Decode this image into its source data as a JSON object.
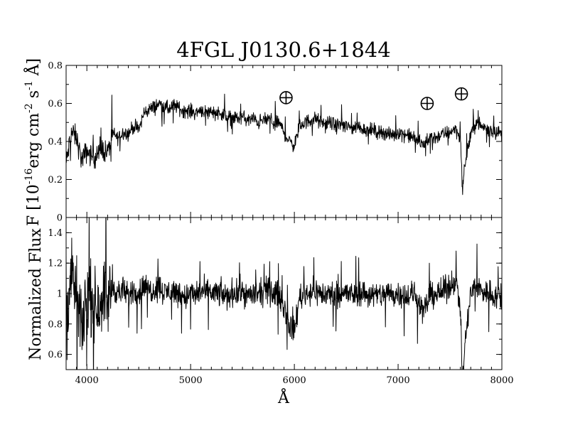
{
  "chart_data": {
    "type": "line",
    "title": "4FGL J0130.6+1844",
    "xlabel": "Å",
    "xlim": [
      3800,
      8000
    ],
    "x_ticks": [
      "4000",
      "5000",
      "6000",
      "7000",
      "8000"
    ],
    "panels": [
      {
        "id": "flux",
        "ylabel_parts": [
          "F [10",
          "-16",
          "erg cm",
          "-2",
          " s",
          "-1",
          " Å]"
        ],
        "ylim": [
          0,
          0.8
        ],
        "y_ticks": [
          "0",
          "0.2",
          "0.4",
          "0.6",
          "0.8"
        ],
        "series": [
          {
            "x": [
              3800,
              3850,
              3900,
              3950,
              4000,
              4050,
              4100,
              4150,
              4200,
              4250,
              4300,
              4350,
              4400,
              4450,
              4500,
              4550,
              4600,
              4650,
              4700,
              4750,
              4800,
              4850,
              4900,
              4950,
              5000,
              5050,
              5100,
              5150,
              5200,
              5250,
              5300,
              5350,
              5400,
              5450,
              5500,
              5550,
              5600,
              5650,
              5700,
              5750,
              5800,
              5850,
              5900,
              5950,
              6000,
              6050,
              6100,
              6150,
              6200,
              6250,
              6300,
              6350,
              6400,
              6450,
              6500,
              6550,
              6600,
              6650,
              6700,
              6750,
              6800,
              6850,
              6900,
              6950,
              7000,
              7050,
              7100,
              7150,
              7200,
              7250,
              7300,
              7350,
              7400,
              7450,
              7500,
              7550,
              7600,
              7620,
              7650,
              7700,
              7750,
              7800,
              7850,
              7900,
              7950,
              8000
            ],
            "y": [
              0.28,
              0.45,
              0.42,
              0.3,
              0.35,
              0.32,
              0.33,
              0.36,
              0.34,
              0.44,
              0.42,
              0.45,
              0.44,
              0.48,
              0.46,
              0.55,
              0.57,
              0.58,
              0.6,
              0.58,
              0.57,
              0.59,
              0.57,
              0.56,
              0.56,
              0.55,
              0.57,
              0.55,
              0.56,
              0.55,
              0.55,
              0.52,
              0.53,
              0.52,
              0.53,
              0.51,
              0.52,
              0.5,
              0.51,
              0.52,
              0.5,
              0.5,
              0.45,
              0.4,
              0.38,
              0.48,
              0.5,
              0.51,
              0.52,
              0.5,
              0.49,
              0.5,
              0.48,
              0.49,
              0.48,
              0.47,
              0.48,
              0.47,
              0.46,
              0.46,
              0.45,
              0.45,
              0.44,
              0.43,
              0.45,
              0.44,
              0.43,
              0.42,
              0.4,
              0.38,
              0.42,
              0.42,
              0.43,
              0.44,
              0.45,
              0.47,
              0.42,
              0.15,
              0.3,
              0.44,
              0.5,
              0.48,
              0.47,
              0.46,
              0.45,
              0.44
            ]
          }
        ],
        "annotations": [
          {
            "x": 5920,
            "y": 0.63,
            "symbol": "⊕"
          },
          {
            "x": 7280,
            "y": 0.6,
            "symbol": "⊕"
          },
          {
            "x": 7610,
            "y": 0.65,
            "symbol": "⊕"
          }
        ]
      },
      {
        "id": "normalized",
        "ylabel": "Normalized Flux",
        "ylim": [
          0.5,
          1.5
        ],
        "y_ticks": [
          "0.6",
          "0.8",
          "1",
          "1.2",
          "1.4"
        ],
        "series": [
          {
            "x": [
              3800,
              3850,
              3900,
              3950,
              4000,
              4050,
              4100,
              4150,
              4200,
              4250,
              4300,
              4350,
              4400,
              4450,
              4500,
              4550,
              4600,
              4650,
              4700,
              4750,
              4800,
              4850,
              4900,
              4950,
              5000,
              5050,
              5100,
              5150,
              5200,
              5250,
              5300,
              5350,
              5400,
              5450,
              5500,
              5550,
              5600,
              5650,
              5700,
              5750,
              5800,
              5850,
              5900,
              5950,
              6000,
              6050,
              6100,
              6150,
              6200,
              6250,
              6300,
              6350,
              6400,
              6450,
              6500,
              6550,
              6600,
              6650,
              6700,
              6750,
              6800,
              6850,
              6900,
              6950,
              7000,
              7050,
              7100,
              7150,
              7200,
              7250,
              7300,
              7350,
              7400,
              7450,
              7500,
              7550,
              7600,
              7620,
              7650,
              7700,
              7750,
              7800,
              7850,
              7900,
              7950,
              8000
            ],
            "y": [
              0.9,
              1.1,
              1.0,
              0.75,
              1.0,
              0.95,
              0.9,
              1.0,
              0.95,
              1.05,
              1.0,
              1.02,
              0.98,
              1.03,
              1.0,
              1.05,
              1.02,
              1.03,
              1.05,
              1.0,
              1.02,
              1.01,
              1.0,
              0.98,
              1.0,
              0.99,
              1.02,
              1.0,
              1.01,
              1.0,
              1.0,
              0.97,
              1.01,
              1.0,
              1.02,
              0.98,
              1.0,
              0.99,
              1.01,
              1.02,
              1.0,
              1.0,
              0.92,
              0.8,
              0.75,
              0.98,
              1.0,
              1.01,
              1.02,
              1.0,
              0.99,
              1.0,
              0.98,
              1.01,
              1.0,
              0.99,
              1.0,
              1.01,
              0.99,
              1.0,
              0.98,
              1.0,
              1.01,
              0.99,
              1.0,
              1.0,
              0.98,
              1.0,
              0.95,
              0.88,
              0.98,
              1.0,
              1.0,
              1.02,
              1.05,
              1.1,
              0.92,
              0.4,
              0.7,
              1.0,
              1.05,
              1.02,
              1.01,
              1.0,
              0.98,
              0.95
            ]
          }
        ]
      }
    ]
  }
}
